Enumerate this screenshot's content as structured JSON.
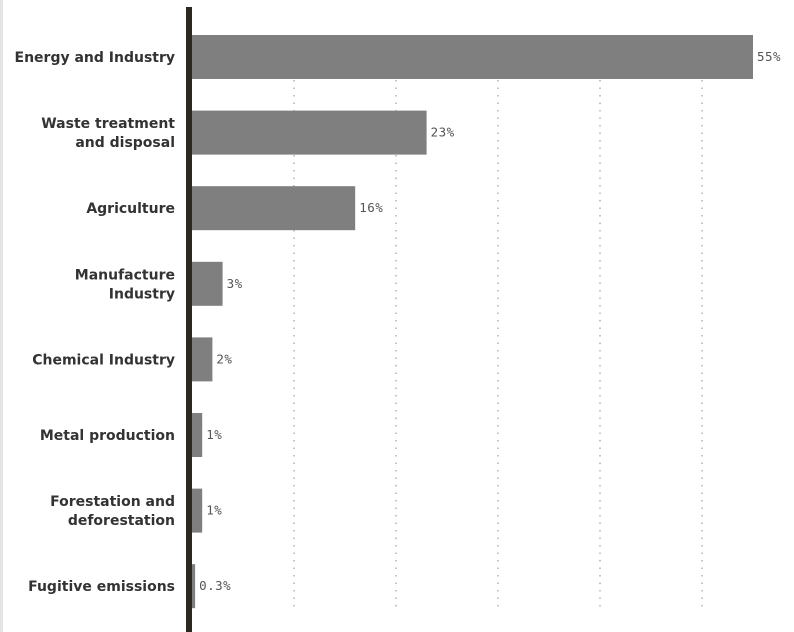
{
  "chart_data": {
    "type": "bar",
    "orientation": "horizontal",
    "categories": [
      [
        "Energy and Industry"
      ],
      [
        "Waste treatment",
        "and disposal"
      ],
      [
        "Agriculture"
      ],
      [
        "Manufacture",
        "Industry"
      ],
      [
        "Chemical Industry"
      ],
      [
        "Metal production"
      ],
      [
        "Forestation and",
        "deforestation"
      ],
      [
        "Fugitive emissions"
      ]
    ],
    "values": [
      55,
      23,
      16,
      3,
      2,
      1,
      1,
      0.3
    ],
    "value_labels": [
      "55%",
      "23%",
      "16%",
      "3%",
      "2%",
      "1%",
      "1%",
      "0.3%"
    ],
    "xlim": [
      0,
      60
    ],
    "gridlines_at": [
      10,
      20,
      30,
      40,
      50
    ],
    "title": "",
    "xlabel": "",
    "ylabel": "",
    "bar_color": "#7f7f7f",
    "axis_color": "#2b2822",
    "grid_color": "#a8a8a8"
  }
}
